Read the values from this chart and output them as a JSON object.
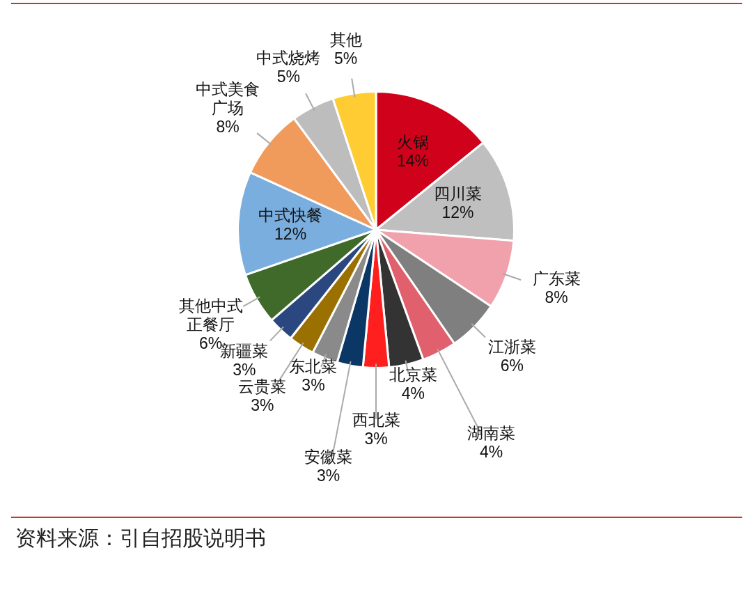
{
  "chart_data": {
    "type": "pie",
    "categories": [
      "火锅",
      "四川菜",
      "广东菜",
      "江浙菜",
      "湖南菜",
      "北京菜",
      "西北菜",
      "安徽菜",
      "东北菜",
      "云贵菜",
      "新疆菜",
      "其他中式正餐厅",
      "中式快餐",
      "中式美食广场",
      "中式烧烤",
      "其他"
    ],
    "values": [
      14,
      12,
      8,
      6,
      4,
      4,
      3,
      3,
      3,
      3,
      3,
      6,
      12,
      8,
      5,
      5
    ],
    "value_labels": [
      "14%",
      "12%",
      "8%",
      "6%",
      "4%",
      "4%",
      "3%",
      "3%",
      "3%",
      "3%",
      "3%",
      "6%",
      "12%",
      "8%",
      "5%",
      "5%"
    ],
    "colors": [
      "#d0021b",
      "#bfbfbf",
      "#f0a1ab",
      "#7f7f7f",
      "#e0606e",
      "#333333",
      "#ff1f1f",
      "#0b3766",
      "#8a8a8a",
      "#9a7000",
      "#2a4780",
      "#3f6a2a",
      "#7aaede",
      "#f09b5c",
      "#bdbdbd",
      "#ffcc33"
    ],
    "legend": false,
    "annotations": [
      "资料来源：引自招股说明书"
    ]
  }
}
